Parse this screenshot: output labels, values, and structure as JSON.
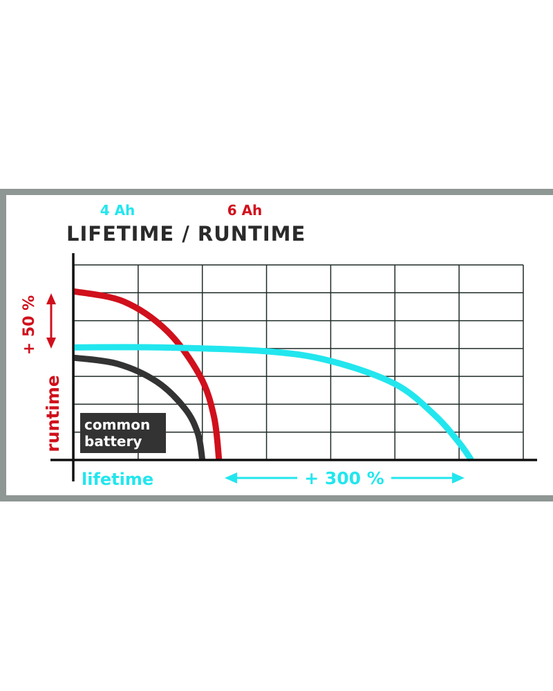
{
  "chart_data": {
    "type": "line",
    "title": "LIFETIME / RUNTIME",
    "xlabel": "lifetime",
    "ylabel": "runtime",
    "xlim": [
      0,
      7
    ],
    "ylim": [
      0,
      7
    ],
    "grid": true,
    "legend": [
      {
        "label": "4 Ah",
        "color": "#22e6ee"
      },
      {
        "label": "6 Ah",
        "color": "#d0101c"
      }
    ],
    "annotations": {
      "runtime_gain": "+ 50 %",
      "lifetime_gain": "+ 300 %",
      "box_label_line1": "common",
      "box_label_line2": "battery"
    },
    "series": [
      {
        "name": "6 Ah",
        "color": "#d0101c",
        "points": [
          [
            0,
            6.05
          ],
          [
            0.77,
            5.69
          ],
          [
            1.45,
            4.63
          ],
          [
            1.96,
            3.03
          ],
          [
            2.18,
            1.57
          ],
          [
            2.26,
            0
          ]
        ]
      },
      {
        "name": "common battery",
        "color": "#333333",
        "points": [
          [
            0,
            3.67
          ],
          [
            0.68,
            3.45
          ],
          [
            1.29,
            2.81
          ],
          [
            1.73,
            1.84
          ],
          [
            1.93,
            0.95
          ],
          [
            2,
            0
          ]
        ]
      },
      {
        "name": "4 Ah",
        "color": "#22e6ee",
        "points": [
          [
            0,
            4.04
          ],
          [
            1.32,
            4.04
          ],
          [
            3,
            3.9
          ],
          [
            4,
            3.55
          ],
          [
            5,
            2.73
          ],
          [
            5.62,
            1.61
          ],
          [
            6,
            0.62
          ],
          [
            6.19,
            0
          ]
        ]
      }
    ]
  }
}
